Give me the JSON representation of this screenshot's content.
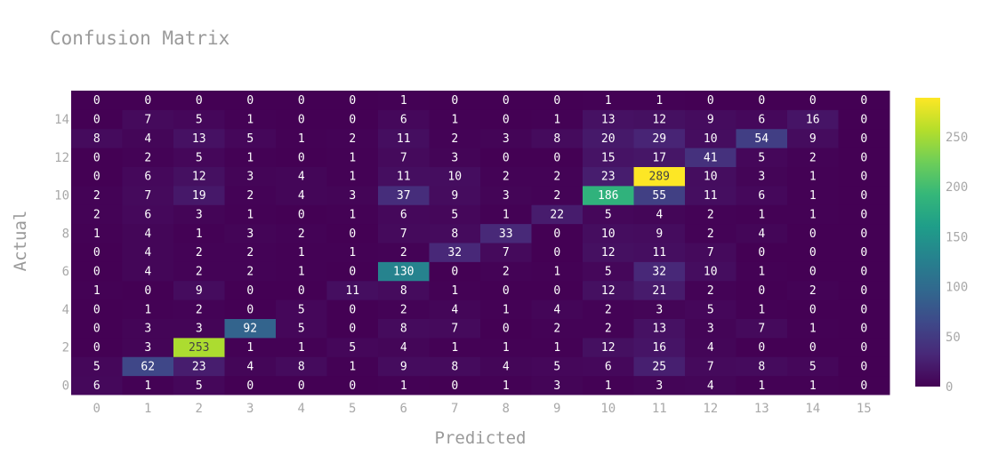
{
  "chart_data": {
    "type": "heatmap",
    "title": "Confusion Matrix",
    "xlabel": "Predicted",
    "ylabel": "Actual",
    "x_categories": [
      "0",
      "1",
      "2",
      "3",
      "4",
      "5",
      "6",
      "7",
      "8",
      "9",
      "10",
      "11",
      "12",
      "13",
      "14",
      "15"
    ],
    "y_categories": [
      "0",
      "1",
      "2",
      "3",
      "4",
      "5",
      "6",
      "7",
      "8",
      "9",
      "10",
      "11",
      "12",
      "13",
      "14",
      "15"
    ],
    "x_tick_labels": [
      "0",
      "1",
      "2",
      "3",
      "4",
      "5",
      "6",
      "7",
      "8",
      "9",
      "10",
      "11",
      "12",
      "13",
      "14",
      "15"
    ],
    "y_tick_labels": [
      "0",
      "2",
      "4",
      "6",
      "8",
      "10",
      "12",
      "14"
    ],
    "y_tick_values": [
      0,
      2,
      4,
      6,
      8,
      10,
      12,
      14
    ],
    "z": [
      [
        6,
        1,
        5,
        0,
        0,
        0,
        1,
        0,
        1,
        3,
        1,
        3,
        4,
        1,
        1,
        0
      ],
      [
        5,
        62,
        23,
        4,
        8,
        1,
        9,
        8,
        4,
        5,
        6,
        25,
        7,
        8,
        5,
        0
      ],
      [
        0,
        3,
        253,
        1,
        1,
        5,
        4,
        1,
        1,
        1,
        12,
        16,
        4,
        0,
        0,
        0
      ],
      [
        0,
        3,
        3,
        92,
        5,
        0,
        8,
        7,
        0,
        2,
        2,
        13,
        3,
        7,
        1,
        0
      ],
      [
        0,
        1,
        2,
        0,
        5,
        0,
        2,
        4,
        1,
        4,
        2,
        3,
        5,
        1,
        0,
        0
      ],
      [
        1,
        0,
        9,
        0,
        0,
        11,
        8,
        1,
        0,
        0,
        12,
        21,
        2,
        0,
        2,
        0
      ],
      [
        0,
        4,
        2,
        2,
        1,
        0,
        130,
        0,
        2,
        1,
        5,
        32,
        10,
        1,
        0,
        0
      ],
      [
        0,
        4,
        2,
        2,
        1,
        1,
        2,
        32,
        7,
        0,
        12,
        11,
        7,
        0,
        0,
        0
      ],
      [
        1,
        4,
        1,
        3,
        2,
        0,
        7,
        8,
        33,
        0,
        10,
        9,
        2,
        4,
        0,
        0
      ],
      [
        2,
        6,
        3,
        1,
        0,
        1,
        6,
        5,
        1,
        22,
        5,
        4,
        2,
        1,
        1,
        0
      ],
      [
        2,
        7,
        19,
        2,
        4,
        3,
        37,
        9,
        3,
        2,
        186,
        55,
        11,
        6,
        1,
        0
      ],
      [
        0,
        6,
        12,
        3,
        4,
        1,
        11,
        10,
        2,
        2,
        23,
        289,
        10,
        3,
        1,
        0
      ],
      [
        0,
        2,
        5,
        1,
        0,
        1,
        7,
        3,
        0,
        0,
        15,
        17,
        41,
        5,
        2,
        0
      ],
      [
        8,
        4,
        13,
        5,
        1,
        2,
        11,
        2,
        3,
        8,
        20,
        29,
        10,
        54,
        9,
        0
      ],
      [
        0,
        7,
        5,
        1,
        0,
        0,
        6,
        1,
        0,
        1,
        13,
        12,
        9,
        6,
        16,
        0
      ],
      [
        0,
        0,
        0,
        0,
        0,
        0,
        1,
        0,
        0,
        0,
        1,
        1,
        0,
        0,
        0,
        0
      ]
    ],
    "zmin": 0,
    "zmax": 289,
    "colorscale": "Viridis",
    "colorbar_ticks": [
      "0",
      "50",
      "100",
      "150",
      "200",
      "250"
    ],
    "colorbar_tick_values": [
      0,
      50,
      100,
      150,
      200,
      250
    ],
    "colors": {
      "viridis": [
        "#440154",
        "#482878",
        "#3e4989",
        "#31688e",
        "#26828e",
        "#1f9e89",
        "#35b779",
        "#6ece58",
        "#b5de2b",
        "#fde725"
      ],
      "label_light": "#ffffff",
      "label_dark": "#444444"
    }
  }
}
